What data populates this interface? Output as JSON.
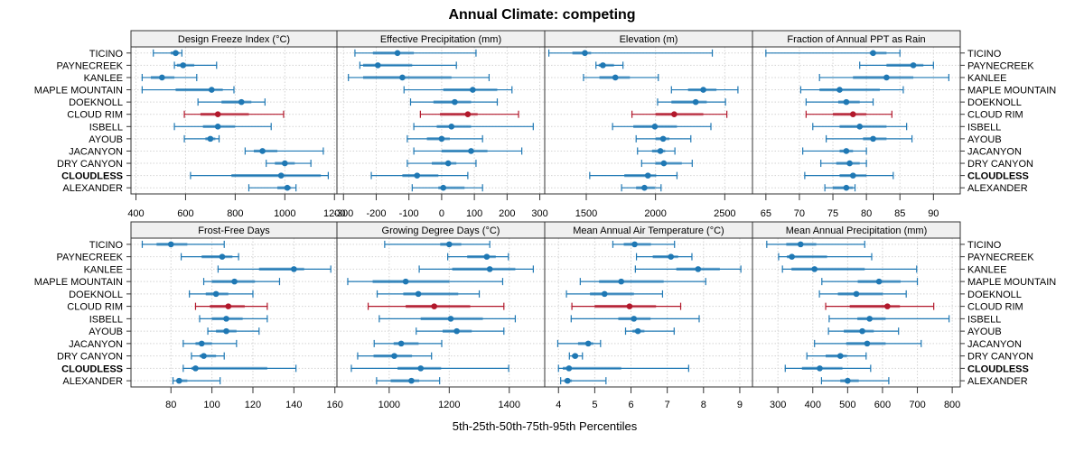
{
  "chart_data": {
    "type": "dot-whisker",
    "title": "Annual Climate: competing",
    "xlabel": "5th-25th-50th-75th-95th Percentiles",
    "percentiles": [
      "p5",
      "p25",
      "p50",
      "p75",
      "p95"
    ],
    "grid": true,
    "highlight_site": "CLOUD RIM",
    "bold_site": "CLOUDLESS",
    "colors": {
      "default": "#1f78b4",
      "highlight": "#b2182b",
      "strip_bg": "#f0f0f0"
    },
    "sites": [
      "TICINO",
      "PAYNECREEK",
      "KANLEE",
      "MAPLE MOUNTAIN",
      "DOEKNOLL",
      "CLOUD RIM",
      "ISBELL",
      "AYOUB",
      "JACANYON",
      "DRY CANYON",
      "CLOUDLESS",
      "ALEXANDER"
    ],
    "panels": [
      {
        "name": "Design Freeze Index (°C)",
        "xlim": [
          380,
          1210
        ],
        "ticks": [
          400,
          600,
          800,
          1000,
          1200
        ],
        "values": [
          [
            470,
            540,
            560,
            575,
            585
          ],
          [
            555,
            565,
            590,
            635,
            725
          ],
          [
            425,
            460,
            505,
            555,
            645
          ],
          [
            425,
            560,
            705,
            750,
            795
          ],
          [
            650,
            745,
            825,
            865,
            920
          ],
          [
            595,
            660,
            730,
            855,
            995
          ],
          [
            555,
            670,
            730,
            800,
            945
          ],
          [
            595,
            680,
            700,
            720,
            735
          ],
          [
            840,
            875,
            910,
            970,
            1155
          ],
          [
            925,
            960,
            1000,
            1040,
            1105
          ],
          [
            620,
            785,
            985,
            1145,
            1175
          ],
          [
            855,
            970,
            1010,
            1025,
            1045
          ]
        ]
      },
      {
        "name": "Effective Precipitation (mm)",
        "xlim": [
          -320,
          315
        ],
        "ticks": [
          -300,
          -200,
          -100,
          0,
          100,
          200,
          300
        ],
        "values": [
          [
            -265,
            -210,
            -135,
            -85,
            105
          ],
          [
            -250,
            -240,
            -195,
            -90,
            45
          ],
          [
            -285,
            -240,
            -120,
            30,
            145
          ],
          [
            -115,
            5,
            95,
            170,
            215
          ],
          [
            -95,
            -25,
            40,
            90,
            170
          ],
          [
            -65,
            -5,
            80,
            110,
            235
          ],
          [
            -85,
            -15,
            30,
            90,
            280
          ],
          [
            -105,
            -45,
            0,
            25,
            125
          ],
          [
            -85,
            0,
            90,
            140,
            245
          ],
          [
            -105,
            -30,
            20,
            45,
            105
          ],
          [
            -215,
            -120,
            -75,
            -10,
            80
          ],
          [
            -90,
            -10,
            5,
            70,
            125
          ]
        ]
      },
      {
        "name": "Elevation (m)",
        "xlim": [
          1200,
          2700
        ],
        "ticks": [
          1500,
          2000,
          2500
        ],
        "values": [
          [
            1230,
            1400,
            1490,
            1535,
            2410
          ],
          [
            1570,
            1590,
            1620,
            1700,
            1765
          ],
          [
            1480,
            1595,
            1710,
            1815,
            2020
          ],
          [
            2115,
            2235,
            2345,
            2440,
            2595
          ],
          [
            2015,
            2115,
            2290,
            2370,
            2505
          ],
          [
            1830,
            2000,
            2135,
            2345,
            2515
          ],
          [
            1690,
            1840,
            1995,
            2155,
            2400
          ],
          [
            1860,
            2000,
            2055,
            2100,
            2255
          ],
          [
            1870,
            1975,
            2035,
            2070,
            2140
          ],
          [
            1900,
            2000,
            2060,
            2190,
            2265
          ],
          [
            1525,
            1775,
            1945,
            2005,
            2155
          ],
          [
            1755,
            1860,
            1920,
            1995,
            2040
          ]
        ]
      },
      {
        "name": "Fraction of Annual PPT as Rain",
        "xlim": [
          63,
          94
        ],
        "ticks": [
          65,
          70,
          75,
          80,
          85,
          90
        ],
        "values": [
          [
            65,
            80.5,
            81,
            83,
            85
          ],
          [
            79,
            83,
            87,
            88.5,
            90
          ],
          [
            73,
            78,
            83,
            87,
            92.3
          ],
          [
            70.2,
            73,
            76,
            82,
            85.5
          ],
          [
            71,
            75.8,
            77,
            79,
            81
          ],
          [
            71,
            75,
            78,
            80,
            83.8
          ],
          [
            72,
            76,
            79,
            83,
            86
          ],
          [
            74,
            79.5,
            81,
            83,
            86.8
          ],
          [
            70.5,
            76,
            77,
            78,
            80
          ],
          [
            73.2,
            75.5,
            77.5,
            79,
            80
          ],
          [
            70.8,
            76,
            78,
            80,
            84
          ],
          [
            73.8,
            75,
            77,
            78,
            78.3
          ]
        ]
      },
      {
        "name": "Frost-Free Days",
        "xlim": [
          60.5,
          161
        ],
        "ticks": [
          80,
          100,
          120,
          140,
          160
        ],
        "values": [
          [
            66,
            73,
            80,
            88,
            106
          ],
          [
            85,
            95,
            105,
            110,
            113
          ],
          [
            103,
            123,
            140,
            145,
            158
          ],
          [
            96,
            100,
            111,
            121,
            133
          ],
          [
            89,
            97,
            102,
            108,
            120
          ],
          [
            92,
            99,
            108,
            116,
            127
          ],
          [
            94,
            100,
            107,
            115,
            127
          ],
          [
            98,
            102,
            107,
            112,
            123
          ],
          [
            86,
            92,
            95,
            100,
            112
          ],
          [
            90,
            94,
            96,
            102,
            106
          ],
          [
            86,
            90,
            92,
            127,
            141
          ],
          [
            81,
            83,
            84,
            88,
            104
          ]
        ]
      },
      {
        "name": "Growing Degree Days (°C)",
        "xlim": [
          826,
          1518
        ],
        "ticks": [
          1000,
          1200,
          1400
        ],
        "values": [
          [
            985,
            1170,
            1200,
            1240,
            1335
          ],
          [
            1195,
            1260,
            1325,
            1355,
            1397
          ],
          [
            1100,
            1210,
            1335,
            1420,
            1480
          ],
          [
            862,
            945,
            1055,
            1200,
            1378
          ],
          [
            960,
            1047,
            1097,
            1230,
            1300
          ],
          [
            930,
            1055,
            1150,
            1270,
            1382
          ],
          [
            967,
            1105,
            1205,
            1312,
            1420
          ],
          [
            1090,
            1178,
            1225,
            1275,
            1382
          ],
          [
            950,
            1015,
            1040,
            1098,
            1175
          ],
          [
            895,
            948,
            1017,
            1076,
            1141
          ],
          [
            874,
            1028,
            1105,
            1173,
            1398
          ],
          [
            958,
            1005,
            1074,
            1100,
            1168
          ]
        ]
      },
      {
        "name": "Mean Annual Air Temperature (°C)",
        "xlim": [
          3.62,
          9.35
        ],
        "ticks": [
          4,
          5,
          6,
          7,
          8,
          9
        ],
        "values": [
          [
            5.5,
            5.8,
            6.1,
            6.55,
            7.2
          ],
          [
            6.15,
            6.6,
            7.1,
            7.3,
            7.68
          ],
          [
            6.12,
            7.25,
            7.85,
            8.45,
            9.03
          ],
          [
            4.6,
            5.12,
            5.73,
            6.9,
            8.06
          ],
          [
            4.22,
            4.87,
            5.27,
            6.08,
            6.87
          ],
          [
            4.37,
            5.0,
            5.96,
            6.69,
            7.37
          ],
          [
            4.35,
            5.65,
            6.08,
            6.54,
            7.88
          ],
          [
            5.85,
            6.04,
            6.19,
            6.37,
            7.19
          ],
          [
            3.98,
            4.54,
            4.82,
            4.96,
            5.16
          ],
          [
            4.3,
            4.37,
            4.46,
            4.54,
            4.66
          ],
          [
            4.0,
            4.12,
            4.29,
            5.73,
            7.59
          ],
          [
            4.06,
            4.16,
            4.25,
            4.37,
            5.31
          ]
        ]
      },
      {
        "name": "Mean Annual Precipitation (mm)",
        "xlim": [
          227,
          823
        ],
        "ticks": [
          300,
          400,
          500,
          600,
          700,
          800
        ],
        "values": [
          [
            268,
            324,
            365,
            410,
            549
          ],
          [
            302,
            326,
            340,
            441,
            569
          ],
          [
            313,
            339,
            405,
            549,
            698
          ],
          [
            426,
            529,
            590,
            652,
            700
          ],
          [
            419,
            472,
            525,
            601,
            668
          ],
          [
            437,
            506,
            614,
            650,
            747
          ],
          [
            447,
            528,
            563,
            609,
            791
          ],
          [
            445,
            489,
            542,
            575,
            646
          ],
          [
            405,
            496,
            556,
            609,
            711
          ],
          [
            383,
            437,
            479,
            498,
            553
          ],
          [
            321,
            369,
            420,
            485,
            566
          ],
          [
            425,
            479,
            500,
            532,
            618
          ]
        ]
      }
    ]
  }
}
